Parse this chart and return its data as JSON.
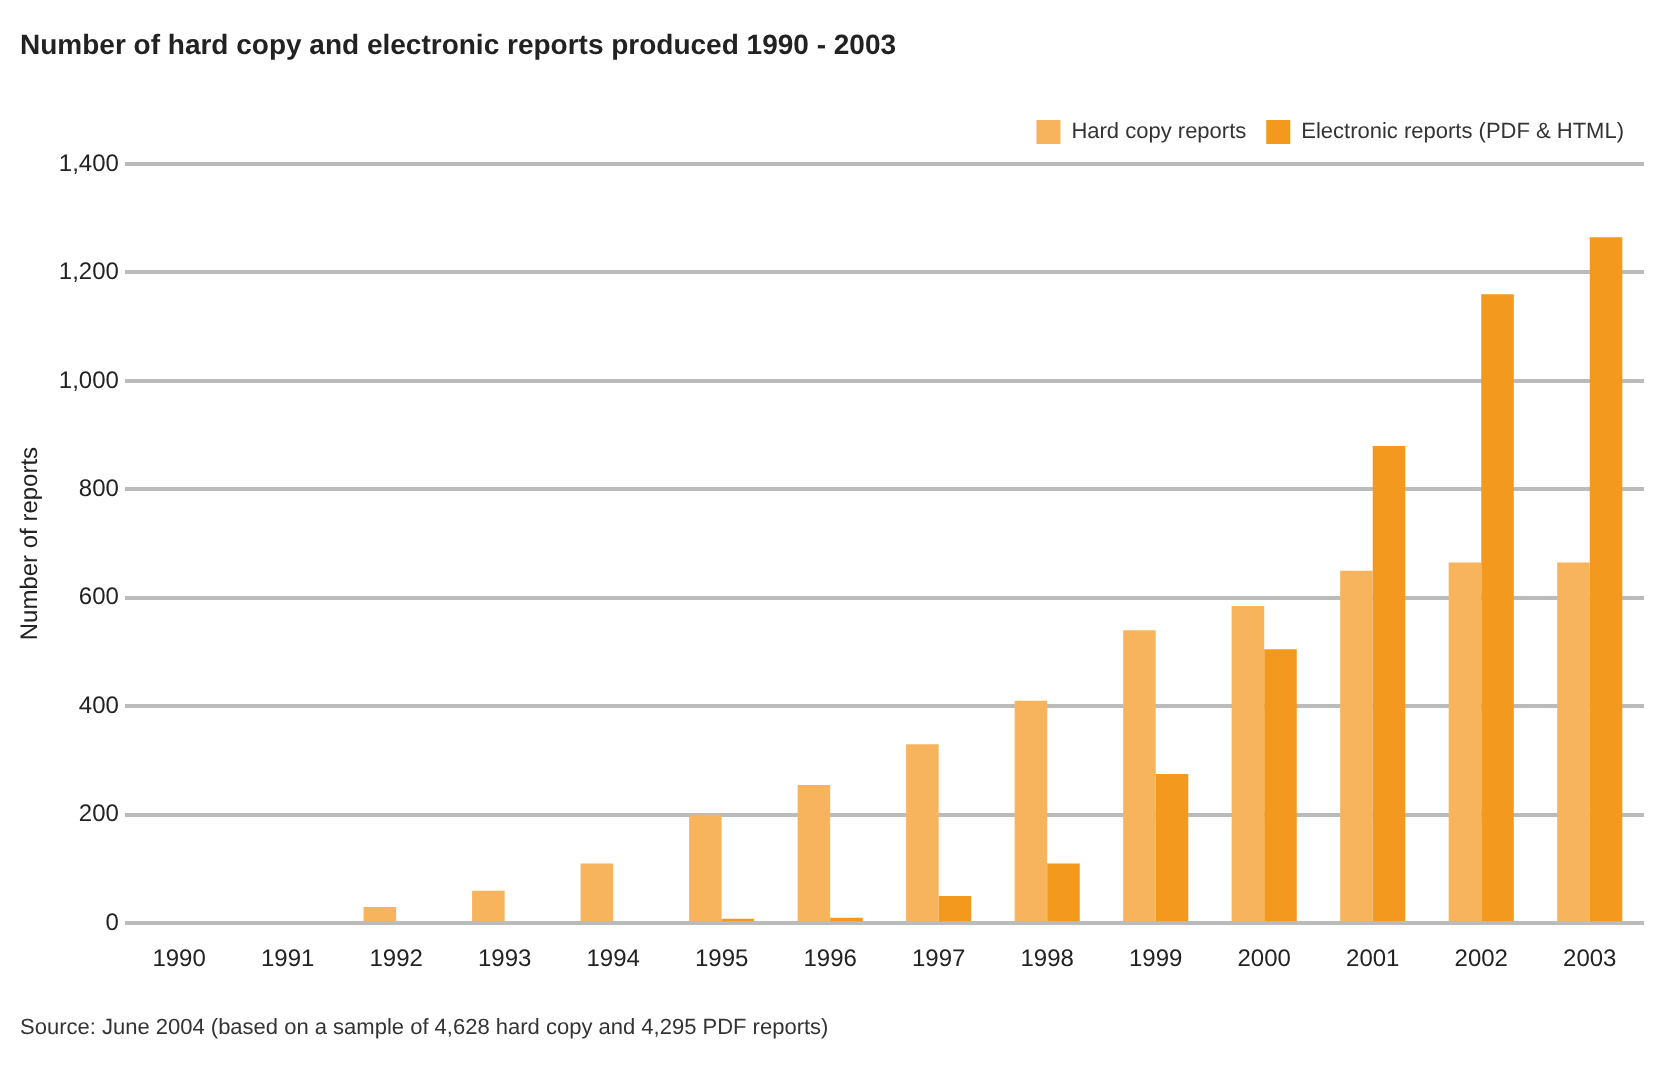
{
  "chart_data": {
    "type": "bar",
    "title": "Number of hard copy and electronic reports produced 1990 - 2003",
    "ylabel": "Number of reports",
    "categories": [
      "1990",
      "1991",
      "1992",
      "1993",
      "1994",
      "1995",
      "1996",
      "1997",
      "1998",
      "1999",
      "2000",
      "2001",
      "2002",
      "2003"
    ],
    "series": [
      {
        "name": "Hard copy reports",
        "color": "#f8b45c",
        "values": [
          0,
          0,
          30,
          60,
          110,
          200,
          255,
          330,
          410,
          540,
          585,
          650,
          665,
          665
        ]
      },
      {
        "name": "Electronic reports (PDF & HTML)",
        "color": "#f39a1e",
        "values": [
          0,
          0,
          0,
          0,
          0,
          8,
          10,
          50,
          110,
          275,
          505,
          880,
          1160,
          1265
        ]
      }
    ],
    "ylim": [
      0,
      1400
    ],
    "yticks": [
      0,
      {
        "value": 200,
        "label": "200"
      },
      {
        "value": 400,
        "label": "400"
      },
      {
        "value": 600,
        "label": "600"
      },
      {
        "value": 800,
        "label": "800"
      },
      {
        "value": 1000,
        "label": "1,000"
      },
      {
        "value": 1200,
        "label": "1,200"
      },
      {
        "value": 1400,
        "label": "1,400"
      }
    ],
    "grid": "y",
    "legend": "top right",
    "annotations": [
      "Source: June 2004 (based on a sample of 4,628 hard copy and 4,295 PDF reports)"
    ]
  }
}
